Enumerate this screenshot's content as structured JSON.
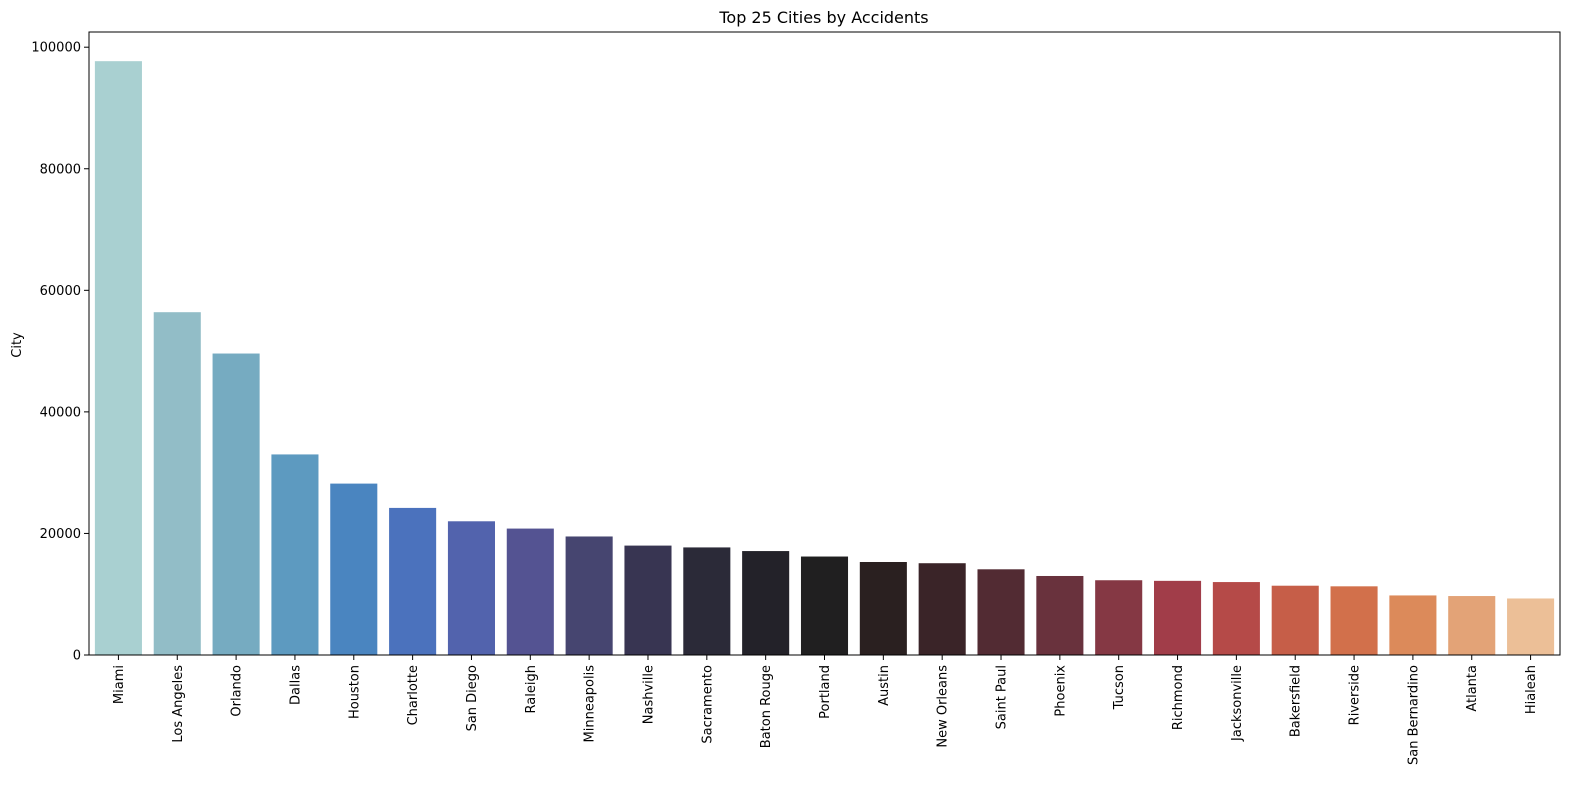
{
  "chart_data": {
    "type": "bar",
    "title": "Top 25 Cities by Accidents",
    "xlabel": "",
    "ylabel": "City",
    "ylim": [
      0,
      102500
    ],
    "yticks": [
      0,
      20000,
      40000,
      60000,
      80000,
      100000
    ],
    "ytick_labels": [
      "0",
      "20000",
      "40000",
      "60000",
      "80000",
      "100000"
    ],
    "grid": false,
    "categories": [
      "Miami",
      "Los Angeles",
      "Orlando",
      "Dallas",
      "Houston",
      "Charlotte",
      "San Diego",
      "Raleigh",
      "Minneapolis",
      "Nashville",
      "Sacramento",
      "Baton Rouge",
      "Portland",
      "Austin",
      "New Orleans",
      "Saint Paul",
      "Phoenix",
      "Tucson",
      "Richmond",
      "Jacksonville",
      "Bakersfield",
      "Riverside",
      "San Bernardino",
      "Atlanta",
      "Hialeah"
    ],
    "values": [
      97700,
      56400,
      49600,
      33000,
      28200,
      24200,
      22000,
      20800,
      19500,
      18000,
      17700,
      17100,
      16200,
      15300,
      15100,
      14100,
      13000,
      12300,
      12200,
      12000,
      11400,
      11300,
      9800,
      9700,
      9300
    ],
    "colors": [
      "#a9d0d1",
      "#92bdc7",
      "#76abc1",
      "#5d9ac0",
      "#4a85c0",
      "#4b72bd",
      "#5263ad",
      "#545392",
      "#464570",
      "#383552",
      "#2b2a38",
      "#232229",
      "#201f20",
      "#2a2020",
      "#3a2428",
      "#522b33",
      "#69323d",
      "#853844",
      "#a13d49",
      "#b54a48",
      "#c65e48",
      "#d2704b",
      "#dc8a5a",
      "#e3a377",
      "#ecbf97"
    ]
  }
}
